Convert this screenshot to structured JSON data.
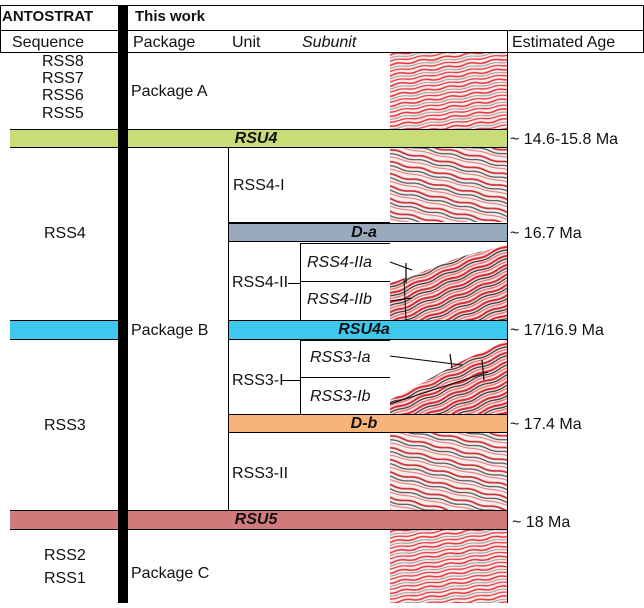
{
  "header": {
    "antostrat": "ANTOSTRAT",
    "this_work": "This work",
    "sequence": "Sequence",
    "package": "Package",
    "unit": "Unit",
    "subunit": "Subunit",
    "estimated_age": "Estimated Age"
  },
  "sequences": {
    "top": [
      "RSS8",
      "RSS7",
      "RSS6",
      "RSS5"
    ],
    "rss4": "RSS4",
    "rss3": "RSS3",
    "bottom": [
      "RSS2",
      "RSS1"
    ]
  },
  "packages": {
    "a": "Package A",
    "b": "Package B",
    "c": "Package C"
  },
  "units": {
    "rss4_i": "RSS4-I",
    "rss4_ii": "RSS4-II",
    "rss3_i": "RSS3-I",
    "rss3_ii": "RSS3-II"
  },
  "subunits": {
    "rss4_iia": "RSS4-IIa",
    "rss4_iib": "RSS4-IIb",
    "rss3_ia": "RSS3-Ia",
    "rss3_ib": "RSS3-Ib"
  },
  "bands": {
    "rsu4": {
      "label": "RSU4",
      "color": "#c8dc78"
    },
    "d_a": {
      "label": "D-a",
      "color": "#9aa9bc"
    },
    "rsu4a": {
      "label": "RSU4a",
      "color": "#3ec8ee"
    },
    "d_b": {
      "label": "D-b",
      "color": "#f6b47a"
    },
    "rsu5": {
      "label": "RSU5",
      "color": "#d07a7c"
    }
  },
  "ages": {
    "rsu4": "~ 14.6-15.8 Ma",
    "d_a": "~ 16.7 Ma",
    "rsu4a": "~ 17/16.9 Ma",
    "d_b": "~ 17.4 Ma",
    "rsu5": "~ 18 Ma"
  },
  "colors": {
    "seismic_red": "#e8323a",
    "seismic_dark": "#222222",
    "divider": "#000000"
  }
}
